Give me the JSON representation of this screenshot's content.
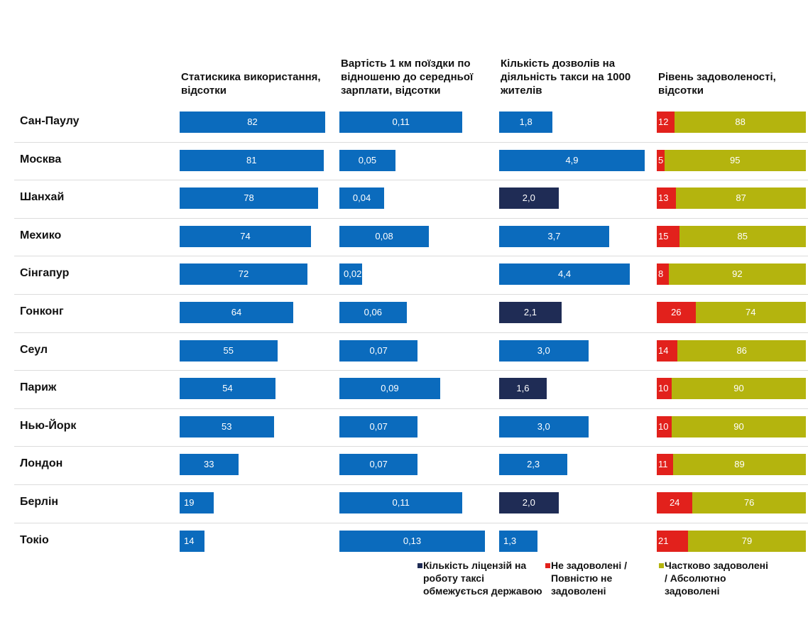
{
  "chart_data": [
    {
      "type": "bar",
      "title": "Статискика використання, відсотки",
      "categories": [
        "Сан-Паулу",
        "Москва",
        "Шанхай",
        "Мехико",
        "Сінгапур",
        "Гонконг",
        "Сеул",
        "Париж",
        "Нью-Йорк",
        "Лондон",
        "Берлін",
        "Токіо"
      ],
      "values": [
        82,
        81,
        78,
        74,
        72,
        64,
        55,
        54,
        53,
        33,
        19,
        14
      ],
      "color": "#0b6bbd"
    },
    {
      "type": "bar",
      "title": "Вартість 1 км поїздки по відношеню до середньої зарплати, відсотки",
      "values": [
        0.11,
        0.05,
        0.04,
        0.08,
        0.02,
        0.06,
        0.07,
        0.09,
        0.07,
        0.07,
        0.11,
        0.13
      ],
      "value_labels": [
        "0,11",
        "0,05",
        "0,04",
        "0,08",
        "0,02",
        "0,06",
        "0,07",
        "0,09",
        "0,07",
        "0,07",
        "0,11",
        "0,13"
      ],
      "color": "#0b6bbd"
    },
    {
      "type": "bar",
      "title": "Кількість дозволів на діяльність такси на 1000 жителів",
      "values": [
        1.8,
        4.9,
        2.0,
        3.7,
        4.4,
        2.1,
        3.0,
        1.6,
        3.0,
        2.3,
        2.0,
        1.3
      ],
      "value_labels": [
        "1,8",
        "4,9",
        "2,0",
        "3,7",
        "4,4",
        "2,1",
        "3,0",
        "1,6",
        "3,0",
        "2,3",
        "2,0",
        "1,3"
      ],
      "colors": [
        "#0b6bbd",
        "#0b6bbd",
        "#1f2c55",
        "#0b6bbd",
        "#0b6bbd",
        "#1f2c55",
        "#0b6bbd",
        "#1f2c55",
        "#0b6bbd",
        "#0b6bbd",
        "#1f2c55",
        "#0b6bbd"
      ],
      "legend": [
        {
          "name": "Кількість ліцензій на роботу таксі обмежується державою",
          "color": "#1f2c55"
        }
      ]
    },
    {
      "type": "stacked_bar",
      "title": "Рівень задоволеності, відсотки",
      "series": [
        {
          "name": "Не задоволені / Повністю не задоволені",
          "color": "#e2211c",
          "values": [
            12,
            5,
            13,
            15,
            8,
            26,
            14,
            10,
            10,
            11,
            24,
            21
          ]
        },
        {
          "name": "Частково задоволені / Абсолютно задоволені",
          "color": "#b4b40e",
          "values": [
            88,
            95,
            87,
            85,
            92,
            74,
            86,
            90,
            90,
            89,
            76,
            79
          ]
        }
      ]
    }
  ]
}
